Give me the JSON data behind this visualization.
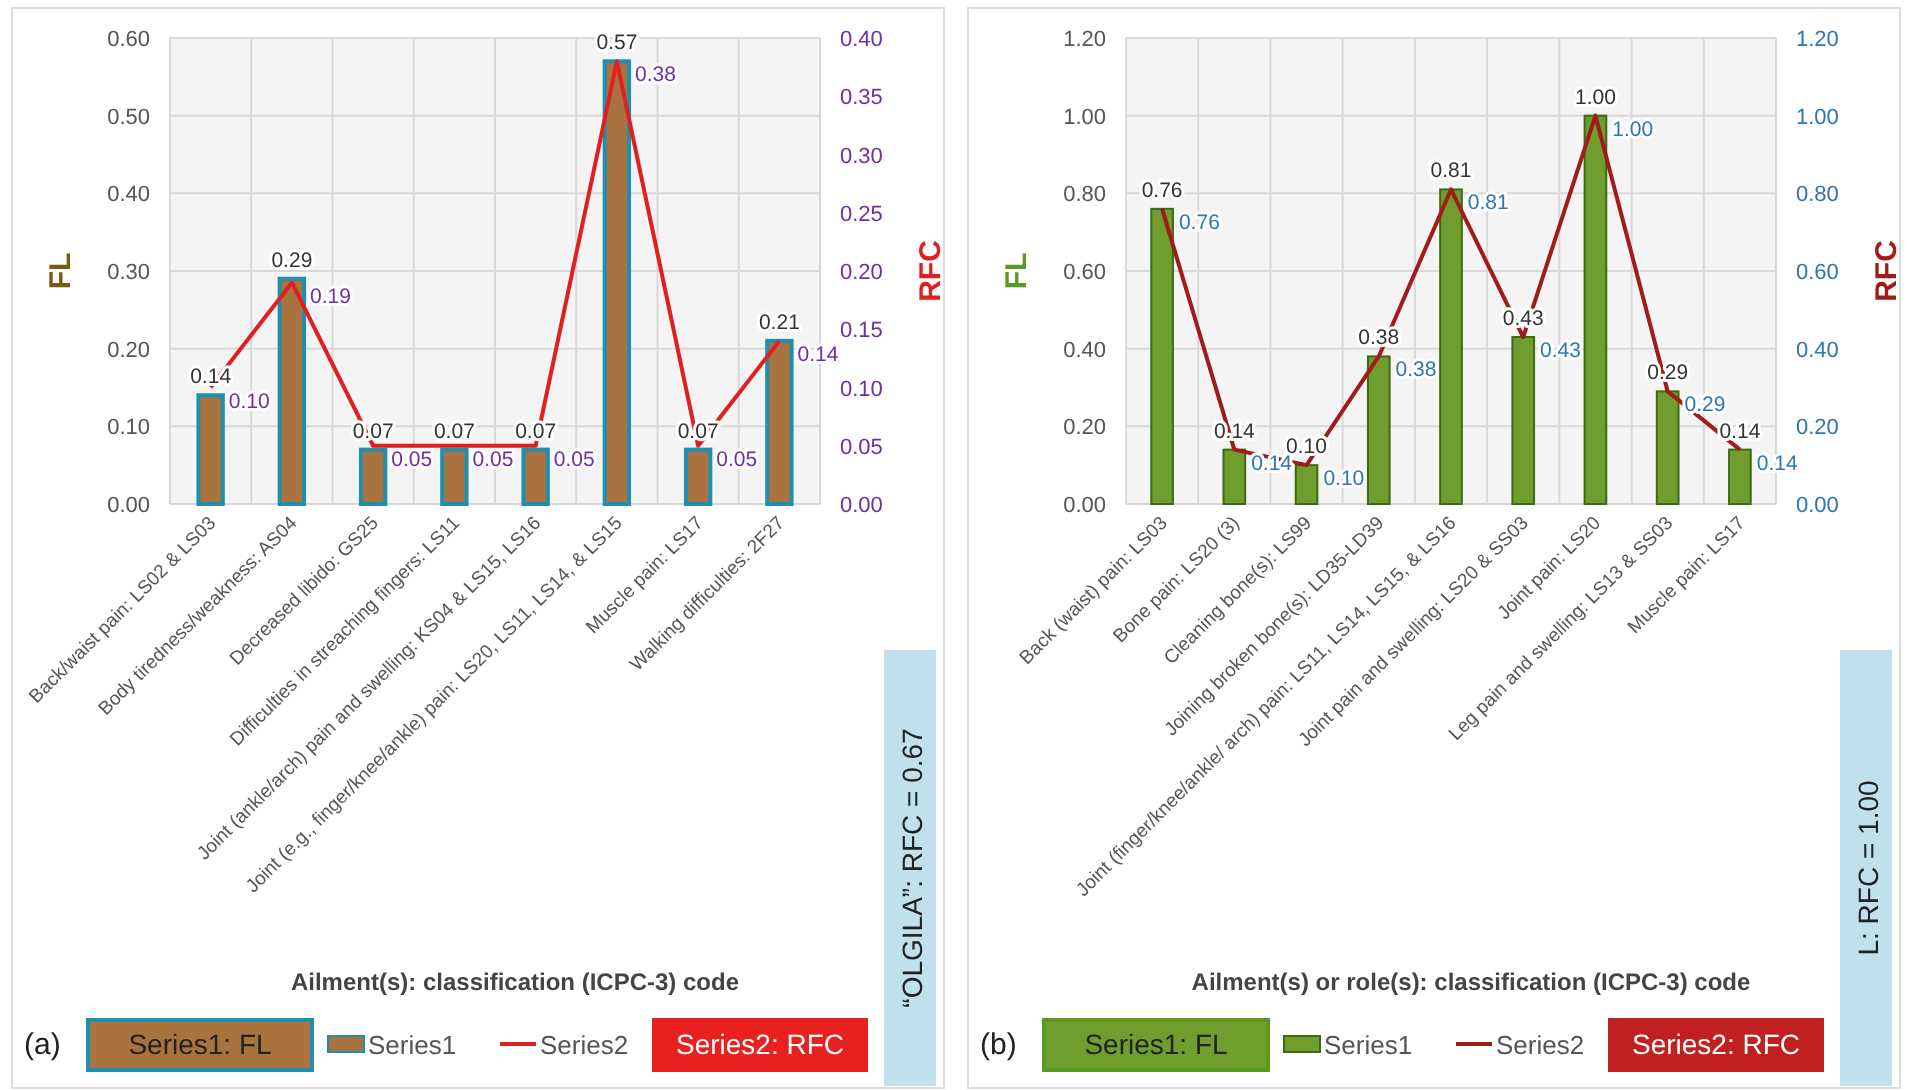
{
  "chart_data": [
    {
      "type": "bar",
      "categories": [
        "Back/waist pain: LS02 & LS03",
        "Body tiredness/weakness: AS04",
        "Decreased libido: GS25",
        "Difficulties in streaching fingers: LS11",
        "Joint (ankle/arch) pain and swelling: KS04 & LS15, LS16",
        "Joint (e.g., finger/knee/ankle) pain: LS20, LS11, LS14, & LS15",
        "Muscle pain: LS17",
        "Walking difficulties: 2F27"
      ],
      "series": [
        {
          "name": "Series1",
          "color": "#a8733f",
          "values": [
            0.14,
            0.29,
            0.07,
            0.07,
            0.07,
            0.57,
            0.07,
            0.21
          ],
          "value_labels": [
            "0.14",
            "0.29",
            "0.07",
            "0.07",
            "0.07",
            "0.57",
            "0.07",
            "0.21"
          ]
        },
        {
          "name": "Series2",
          "type": "line",
          "axis": "y2",
          "color": "#e02020",
          "values": [
            0.1,
            0.19,
            0.05,
            0.05,
            0.05,
            0.38,
            0.05,
            0.14
          ],
          "value_labels": [
            "0.10",
            "0.19",
            "0.05",
            "0.05",
            "0.05",
            "0.38",
            "0.05",
            "0.14"
          ]
        }
      ],
      "ylabel": "FL",
      "y2label": "RFC",
      "xlabel": "Ailment(s): classification (ICPC-3) code",
      "ylim": [
        0,
        0.6
      ],
      "yticks": [
        {
          "value": 0,
          "label": "0.00"
        },
        {
          "value": 0.1,
          "label": "0.10"
        },
        {
          "value": 0.2,
          "label": "0.20"
        },
        {
          "value": 0.3,
          "label": "0.30"
        },
        {
          "value": 0.4,
          "label": "0.40"
        },
        {
          "value": 0.5,
          "label": "0.50"
        },
        {
          "value": 0.6,
          "label": "0.60"
        }
      ],
      "y2lim": [
        0,
        0.4
      ],
      "y2ticks": [
        {
          "value": 0,
          "label": "0.00"
        },
        {
          "value": 0.05,
          "label": "0.05"
        },
        {
          "value": 0.1,
          "label": "0.10"
        },
        {
          "value": 0.15,
          "label": "0.15"
        },
        {
          "value": 0.2,
          "label": "0.20"
        },
        {
          "value": 0.25,
          "label": "0.25"
        },
        {
          "value": 0.3,
          "label": "0.30"
        },
        {
          "value": 0.35,
          "label": "0.35"
        },
        {
          "value": 0.4,
          "label": "0.40"
        }
      ],
      "grid": true,
      "legend": "bottom",
      "annotations": [
        "(a)",
        "Series1: FL",
        "Series2: RFC",
        "“OLGILA”: RFC = 0.67"
      ]
    },
    {
      "type": "bar",
      "categories": [
        "Back (waist) pain: LS03",
        "Bone pain: LS20 (3)",
        "Cleaning bone(s): LS99",
        "Joining broken bone(s): LD35-LD39",
        "Joint (finger/knee/ankle/ arch) pain: LS11, LS14, LS15, & LS16",
        "Joint pain and swelling: LS20 & SS03",
        "Joint pain: LS20",
        "Leg pain and swelling: LS13 & SS03",
        "Muscle pain: LS17"
      ],
      "series": [
        {
          "name": "Series1",
          "color": "#6f9e2e",
          "values": [
            0.76,
            0.14,
            0.1,
            0.38,
            0.81,
            0.43,
            1.0,
            0.29,
            0.14
          ],
          "value_labels": [
            "0.76",
            "0.14",
            "0.10",
            "0.38",
            "0.81",
            "0.43",
            "1.00",
            "0.29",
            "0.14"
          ]
        },
        {
          "name": "Series2",
          "type": "line",
          "axis": "y2",
          "color": "#a31a1a",
          "values": [
            0.76,
            0.14,
            0.1,
            0.38,
            0.81,
            0.43,
            1.0,
            0.29,
            0.14
          ],
          "value_labels": [
            "0.76",
            "0.14",
            "0.10",
            "0.38",
            "0.81",
            "0.43",
            "1.00",
            "0.29",
            "0.14"
          ]
        }
      ],
      "ylabel": "FL",
      "y2label": "RFC",
      "xlabel": "Ailment(s) or role(s): classification (ICPC-3) code",
      "ylim": [
        0,
        1.2
      ],
      "yticks": [
        {
          "value": 0,
          "label": "0.00"
        },
        {
          "value": 0.2,
          "label": "0.20"
        },
        {
          "value": 0.4,
          "label": "0.40"
        },
        {
          "value": 0.6,
          "label": "0.60"
        },
        {
          "value": 0.8,
          "label": "0.80"
        },
        {
          "value": 1.0,
          "label": "1.00"
        },
        {
          "value": 1.2,
          "label": "1.20"
        }
      ],
      "y2lim": [
        0,
        1.2
      ],
      "y2ticks": [
        {
          "value": 0,
          "label": "0.00"
        },
        {
          "value": 0.2,
          "label": "0.20"
        },
        {
          "value": 0.4,
          "label": "0.40"
        },
        {
          "value": 0.6,
          "label": "0.60"
        },
        {
          "value": 0.8,
          "label": "0.80"
        },
        {
          "value": 1.0,
          "label": "1.00"
        },
        {
          "value": 1.2,
          "label": "1.20"
        }
      ],
      "grid": true,
      "legend": "bottom",
      "annotations": [
        "(b)",
        "Series1: FL",
        "Series2: RFC",
        "L: RFC = 1.00"
      ]
    }
  ]
}
